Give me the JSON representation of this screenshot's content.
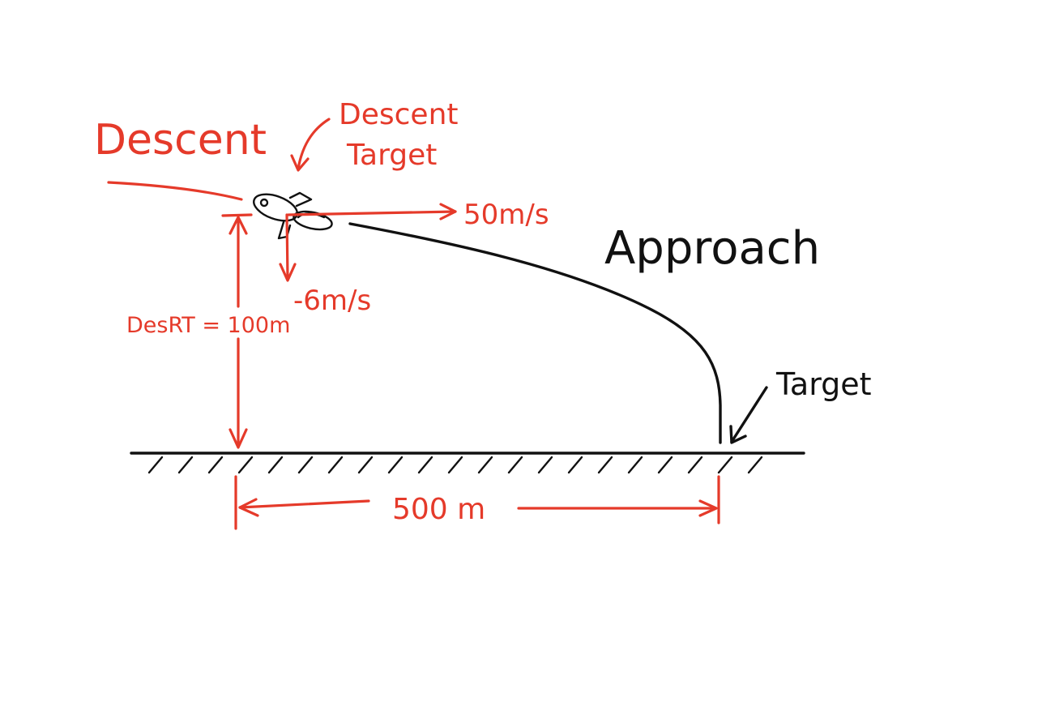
{
  "labels": {
    "descent": "Descent",
    "descent_target_line1": "Descent",
    "descent_target_line2": "Target",
    "horizontal_speed": "50m/s",
    "vertical_speed": "-6m/s",
    "approach": "Approach",
    "target": "Target",
    "desrt": "DesRT = 100m",
    "distance": "500 m"
  },
  "colors": {
    "annotation": "#e53a2a",
    "ink": "#111111",
    "background": "#ffffff"
  },
  "icons": {
    "vehicle": "rocket-icon"
  }
}
